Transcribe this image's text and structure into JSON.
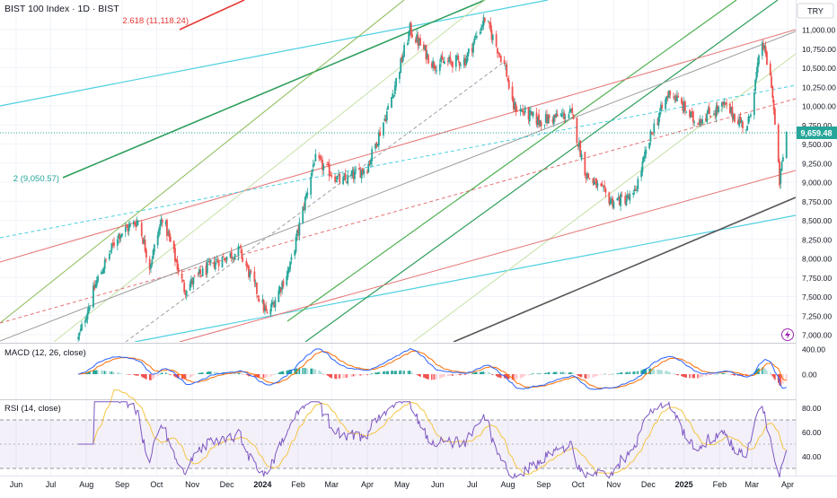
{
  "header": {
    "title": "BIST 100 Index · 1D · BIST",
    "currency": "TRY"
  },
  "price_panel": {
    "price_labels": [
      "11,000.00",
      "10,750.00",
      "10,500.00",
      "10,250.00",
      "10,000.00",
      "9,750.00",
      "9,500.00",
      "9,250.00",
      "9,000.00",
      "8,750.00",
      "8,500.00",
      "8,250.00",
      "8,000.00",
      "7,750.00",
      "7,500.00",
      "7,250.00",
      "7,000.00"
    ],
    "last_price": "9,659.48",
    "fib_label_top": "2.618 (11,118.24)",
    "fib_label_mid": "2 (9,050.57)"
  },
  "macd": {
    "title": "MACD (12, 26, close)",
    "labels": [
      "400.00",
      "0.00"
    ]
  },
  "rsi": {
    "title": "RSI (14, close)",
    "labels": [
      "80.00",
      "60.00",
      "40.00"
    ]
  },
  "time_axis": [
    "Jun",
    "Jul",
    "Aug",
    "Sep",
    "Oct",
    "Nov",
    "Dec",
    "2024",
    "Feb",
    "Mar",
    "Apr",
    "May",
    "Jun",
    "Jul",
    "Aug",
    "Sep",
    "Oct",
    "Nov",
    "Dec",
    "2025",
    "Feb",
    "Mar",
    "Apr"
  ],
  "colors": {
    "up": "#26a69a",
    "down": "#ef5350",
    "macd": "#2962ff",
    "signal": "#ff6d00",
    "rsi": "#7e57c2",
    "rsi_ma": "#f5c542"
  },
  "chart_data": {
    "type": "candlestick",
    "title": "BIST 100 Index · 1D · BIST",
    "ylim": [
      6950,
      11400
    ],
    "approx_close_path": [
      {
        "x": "2023-07-25",
        "y": 6950
      },
      {
        "x": "2023-08-10",
        "y": 7700
      },
      {
        "x": "2023-08-28",
        "y": 8300
      },
      {
        "x": "2023-09-15",
        "y": 8500
      },
      {
        "x": "2023-09-25",
        "y": 7900
      },
      {
        "x": "2023-10-06",
        "y": 8550
      },
      {
        "x": "2023-10-25",
        "y": 7600
      },
      {
        "x": "2023-11-20",
        "y": 7950
      },
      {
        "x": "2023-12-12",
        "y": 8100
      },
      {
        "x": "2024-01-05",
        "y": 7250
      },
      {
        "x": "2024-01-25",
        "y": 7900
      },
      {
        "x": "2024-02-15",
        "y": 9300
      },
      {
        "x": "2024-03-10",
        "y": 9000
      },
      {
        "x": "2024-04-01",
        "y": 9200
      },
      {
        "x": "2024-04-20",
        "y": 10000
      },
      {
        "x": "2024-05-08",
        "y": 11000
      },
      {
        "x": "2024-05-28",
        "y": 10550
      },
      {
        "x": "2024-06-25",
        "y": 10600
      },
      {
        "x": "2024-07-12",
        "y": 11150
      },
      {
        "x": "2024-07-30",
        "y": 10500
      },
      {
        "x": "2024-08-05",
        "y": 10000
      },
      {
        "x": "2024-08-28",
        "y": 9800
      },
      {
        "x": "2024-09-25",
        "y": 9900
      },
      {
        "x": "2024-10-08",
        "y": 9100
      },
      {
        "x": "2024-10-30",
        "y": 8750
      },
      {
        "x": "2024-11-18",
        "y": 8800
      },
      {
        "x": "2024-12-05",
        "y": 9700
      },
      {
        "x": "2024-12-20",
        "y": 10200
      },
      {
        "x": "2025-01-10",
        "y": 9800
      },
      {
        "x": "2025-02-05",
        "y": 10000
      },
      {
        "x": "2025-02-25",
        "y": 9700
      },
      {
        "x": "2025-03-10",
        "y": 10850
      },
      {
        "x": "2025-03-18",
        "y": 10300
      },
      {
        "x": "2025-03-25",
        "y": 9000
      },
      {
        "x": "2025-03-31",
        "y": 9659.48
      }
    ],
    "macd_series": [
      "MACD",
      "Signal",
      "Histogram"
    ],
    "rsi_series": [
      "RSI",
      "RSI-based MA"
    ]
  }
}
